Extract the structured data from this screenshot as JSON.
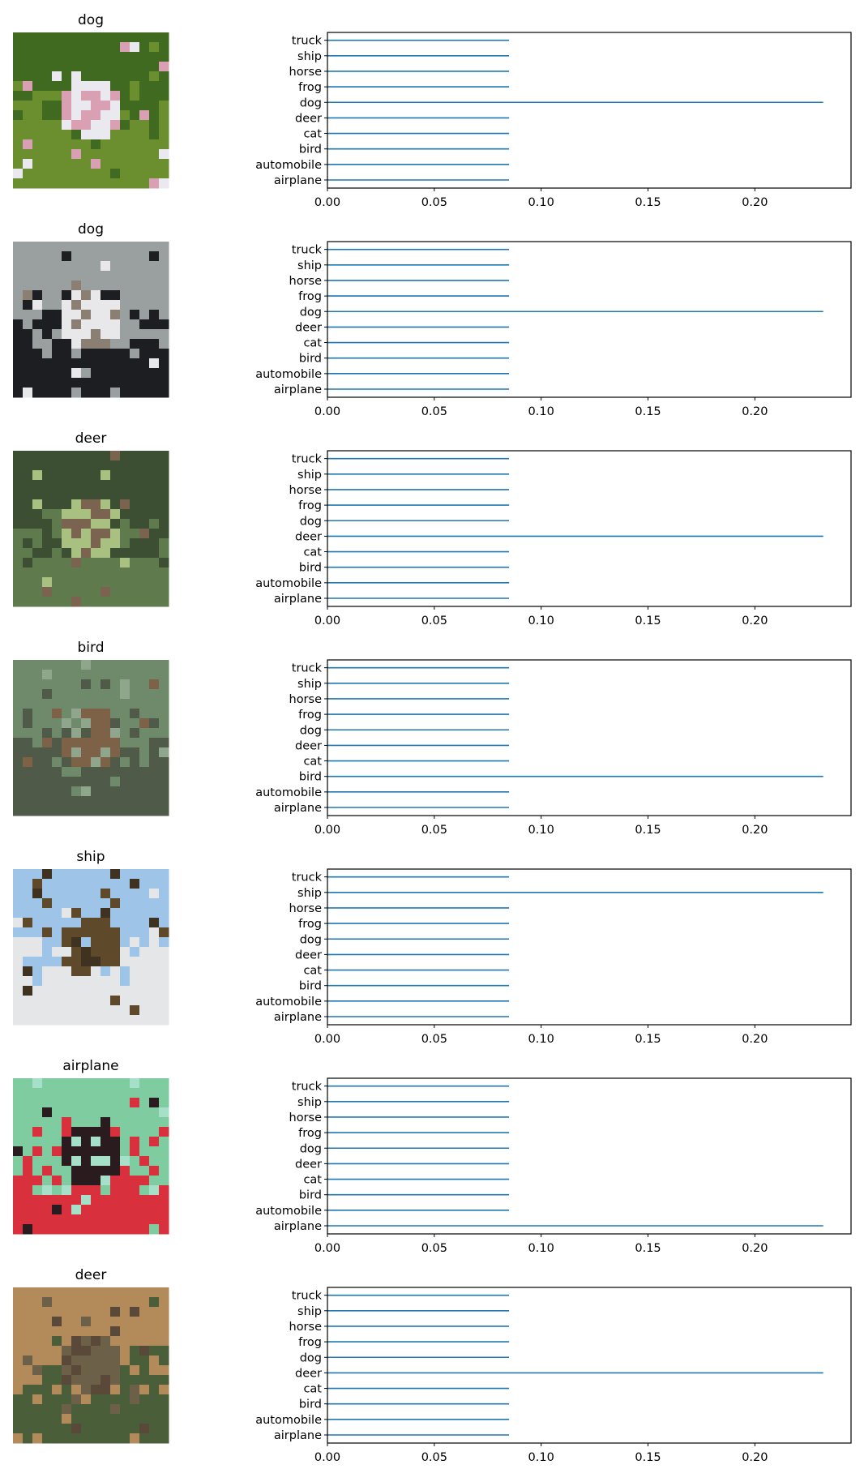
{
  "figure": {
    "classes": [
      "airplane",
      "automobile",
      "bird",
      "cat",
      "deer",
      "dog",
      "frog",
      "horse",
      "ship",
      "truck"
    ],
    "bar_color": "#1f77b4",
    "rows": [
      {
        "title": "dog",
        "image": "white fluffy dog on grass",
        "palette": [
          "#3f6a1f",
          "#6b8f2e",
          "#e9e9ef",
          "#d9a0b4"
        ]
      },
      {
        "title": "dog",
        "image": "black and white dog",
        "palette": [
          "#9aa0a0",
          "#1c1e22",
          "#e8e8ea",
          "#8a7f72"
        ]
      },
      {
        "title": "deer",
        "image": "deer on grass near trees",
        "palette": [
          "#3d4f32",
          "#5f7a4c",
          "#a8c080",
          "#7a6450"
        ]
      },
      {
        "title": "bird",
        "image": "bird on grass",
        "palette": [
          "#6e8a6a",
          "#4f5a48",
          "#7d6248",
          "#8fa68c"
        ]
      },
      {
        "title": "ship",
        "image": "ship near shore",
        "palette": [
          "#9ec4e8",
          "#e4e6e8",
          "#5e4a2a",
          "#3f3220"
        ]
      },
      {
        "title": "airplane",
        "image": "red biplane",
        "palette": [
          "#7fcca0",
          "#d9303e",
          "#2a1c1e",
          "#a6e0c8"
        ]
      },
      {
        "title": "deer",
        "image": "deer in forest with border",
        "palette": [
          "#b38a5a",
          "#4a5e3a",
          "#6d6048",
          "#5a4838"
        ]
      }
    ]
  },
  "chart_data": [
    {
      "type": "bar",
      "orientation": "horizontal",
      "categories": [
        "airplane",
        "automobile",
        "bird",
        "cat",
        "deer",
        "dog",
        "frog",
        "horse",
        "ship",
        "truck"
      ],
      "values": [
        0.085,
        0.085,
        0.085,
        0.085,
        0.085,
        0.232,
        0.085,
        0.085,
        0.085,
        0.085
      ],
      "xlim": [
        0,
        0.245
      ],
      "xticks": [
        "0.00",
        "0.05",
        "0.10",
        "0.15",
        "0.20"
      ]
    },
    {
      "type": "bar",
      "orientation": "horizontal",
      "categories": [
        "airplane",
        "automobile",
        "bird",
        "cat",
        "deer",
        "dog",
        "frog",
        "horse",
        "ship",
        "truck"
      ],
      "values": [
        0.085,
        0.085,
        0.085,
        0.085,
        0.085,
        0.232,
        0.085,
        0.085,
        0.085,
        0.085
      ],
      "xlim": [
        0,
        0.245
      ],
      "xticks": [
        "0.00",
        "0.05",
        "0.10",
        "0.15",
        "0.20"
      ]
    },
    {
      "type": "bar",
      "orientation": "horizontal",
      "categories": [
        "airplane",
        "automobile",
        "bird",
        "cat",
        "deer",
        "dog",
        "frog",
        "horse",
        "ship",
        "truck"
      ],
      "values": [
        0.085,
        0.085,
        0.085,
        0.085,
        0.232,
        0.085,
        0.085,
        0.085,
        0.085,
        0.085
      ],
      "xlim": [
        0,
        0.245
      ],
      "xticks": [
        "0.00",
        "0.05",
        "0.10",
        "0.15",
        "0.20"
      ]
    },
    {
      "type": "bar",
      "orientation": "horizontal",
      "categories": [
        "airplane",
        "automobile",
        "bird",
        "cat",
        "deer",
        "dog",
        "frog",
        "horse",
        "ship",
        "truck"
      ],
      "values": [
        0.085,
        0.085,
        0.232,
        0.085,
        0.085,
        0.085,
        0.085,
        0.085,
        0.085,
        0.085
      ],
      "xlim": [
        0,
        0.245
      ],
      "xticks": [
        "0.00",
        "0.05",
        "0.10",
        "0.15",
        "0.20"
      ]
    },
    {
      "type": "bar",
      "orientation": "horizontal",
      "categories": [
        "airplane",
        "automobile",
        "bird",
        "cat",
        "deer",
        "dog",
        "frog",
        "horse",
        "ship",
        "truck"
      ],
      "values": [
        0.085,
        0.085,
        0.085,
        0.085,
        0.085,
        0.085,
        0.085,
        0.085,
        0.232,
        0.085
      ],
      "xlim": [
        0,
        0.245
      ],
      "xticks": [
        "0.00",
        "0.05",
        "0.10",
        "0.15",
        "0.20"
      ]
    },
    {
      "type": "bar",
      "orientation": "horizontal",
      "categories": [
        "airplane",
        "automobile",
        "bird",
        "cat",
        "deer",
        "dog",
        "frog",
        "horse",
        "ship",
        "truck"
      ],
      "values": [
        0.232,
        0.085,
        0.085,
        0.085,
        0.085,
        0.085,
        0.085,
        0.085,
        0.085,
        0.085
      ],
      "xlim": [
        0,
        0.245
      ],
      "xticks": [
        "0.00",
        "0.05",
        "0.10",
        "0.15",
        "0.20"
      ]
    },
    {
      "type": "bar",
      "orientation": "horizontal",
      "categories": [
        "airplane",
        "automobile",
        "bird",
        "cat",
        "deer",
        "dog",
        "frog",
        "horse",
        "ship",
        "truck"
      ],
      "values": [
        0.085,
        0.085,
        0.085,
        0.085,
        0.232,
        0.085,
        0.085,
        0.085,
        0.085,
        0.085
      ],
      "xlim": [
        0,
        0.245
      ],
      "xticks": [
        "0.00",
        "0.05",
        "0.10",
        "0.15",
        "0.20"
      ]
    }
  ]
}
